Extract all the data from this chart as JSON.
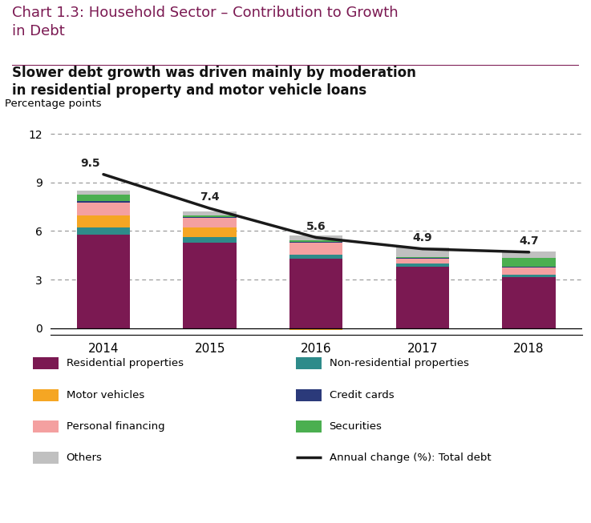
{
  "years": [
    2014,
    2015,
    2016,
    2017,
    2018
  ],
  "line_values": [
    9.5,
    7.4,
    5.6,
    4.9,
    4.7
  ],
  "line_labels": [
    "9.5",
    "7.4",
    "5.6",
    "4.9",
    "4.7"
  ],
  "segments": {
    "Residential properties": [
      5.8,
      5.3,
      4.3,
      3.8,
      3.15
    ],
    "Non-residential properties": [
      0.4,
      0.35,
      0.22,
      0.2,
      0.17
    ],
    "Motor vehicles": [
      0.78,
      0.55,
      -0.12,
      -0.05,
      -0.08
    ],
    "Personal financing": [
      0.78,
      0.6,
      0.75,
      0.28,
      0.45
    ],
    "Credit cards": [
      0.07,
      0.05,
      0.04,
      0.04,
      0.04
    ],
    "Securities": [
      0.4,
      0.11,
      0.1,
      0.08,
      0.52
    ],
    "Others": [
      0.27,
      0.24,
      0.31,
      0.59,
      0.41
    ]
  },
  "colors": {
    "Residential properties": "#7B1952",
    "Non-residential properties": "#2E8B8A",
    "Motor vehicles": "#F5A623",
    "Personal financing": "#F4A0A0",
    "Credit cards": "#2B3A7A",
    "Securities": "#4BAF50",
    "Others": "#C0C0C0"
  },
  "chart_title": "Chart 1.3: Household Sector – Contribution to Growth\nin Debt",
  "subtitle_line1": "Slower debt growth was driven mainly by moderation",
  "subtitle_line2": "in residential property and motor vehicle loans",
  "ylabel": "Percentage points",
  "ylim": [
    -0.4,
    13.0
  ],
  "yticks": [
    0,
    3,
    6,
    9,
    12
  ],
  "title_color": "#7B1952",
  "bg_color": "#FFFFFF",
  "line_color": "#1A1A1A"
}
